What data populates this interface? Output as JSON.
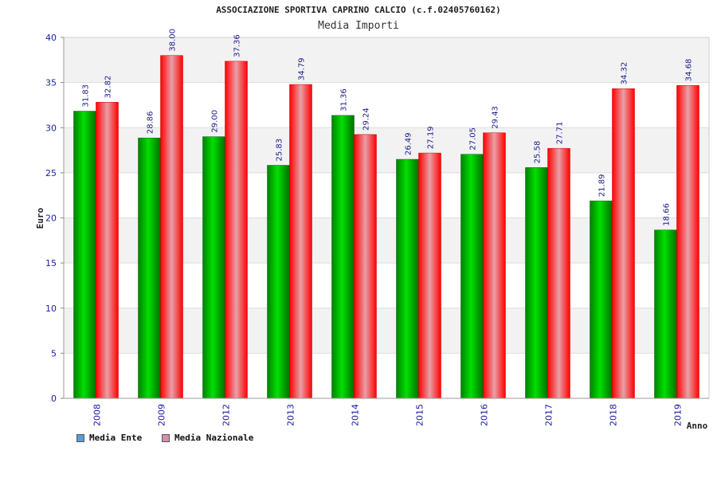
{
  "title": "ASSOCIAZIONE SPORTIVA CAPRINO CALCIO (c.f.02405760162)",
  "subtitle": "Media Importi",
  "legend": {
    "ente_label": "Media Ente",
    "nazionale_label": "Media Nazionale",
    "ente_color": "#5b9bd5",
    "nazionale_color": "#d98bb0"
  },
  "chart_data": {
    "type": "bar",
    "title": "ASSOCIAZIONE SPORTIVA CAPRINO CALCIO (c.f.02405760162)",
    "subtitle": "Media Importi",
    "xlabel": "Anno",
    "ylabel": "Euro",
    "ylim": [
      0,
      40
    ],
    "yticks": [
      0,
      5,
      10,
      15,
      20,
      25,
      30,
      35,
      40
    ],
    "grid": true,
    "legend_position": "bottom-left",
    "categories": [
      "2008",
      "2009",
      "2012",
      "2013",
      "2014",
      "2015",
      "2016",
      "2017",
      "2018",
      "2019"
    ],
    "series": [
      {
        "name": "Media Ente",
        "color": "#00b000",
        "values": [
          31.83,
          28.86,
          29.0,
          25.83,
          31.36,
          26.49,
          27.05,
          25.58,
          21.89,
          18.66
        ],
        "labels": [
          "31.83",
          "28.86",
          "29.00",
          "25.83",
          "31.36",
          "26.49",
          "27.05",
          "25.58",
          "21.89",
          "18.66"
        ]
      },
      {
        "name": "Media Nazionale",
        "color": "#ff1a1a",
        "values": [
          32.82,
          38.0,
          37.36,
          34.79,
          29.24,
          27.19,
          29.43,
          27.71,
          34.32,
          34.68
        ],
        "labels": [
          "32.82",
          "38.00",
          "37.36",
          "34.79",
          "29.24",
          "27.19",
          "29.43",
          "27.71",
          "34.32",
          "34.68"
        ]
      }
    ]
  }
}
